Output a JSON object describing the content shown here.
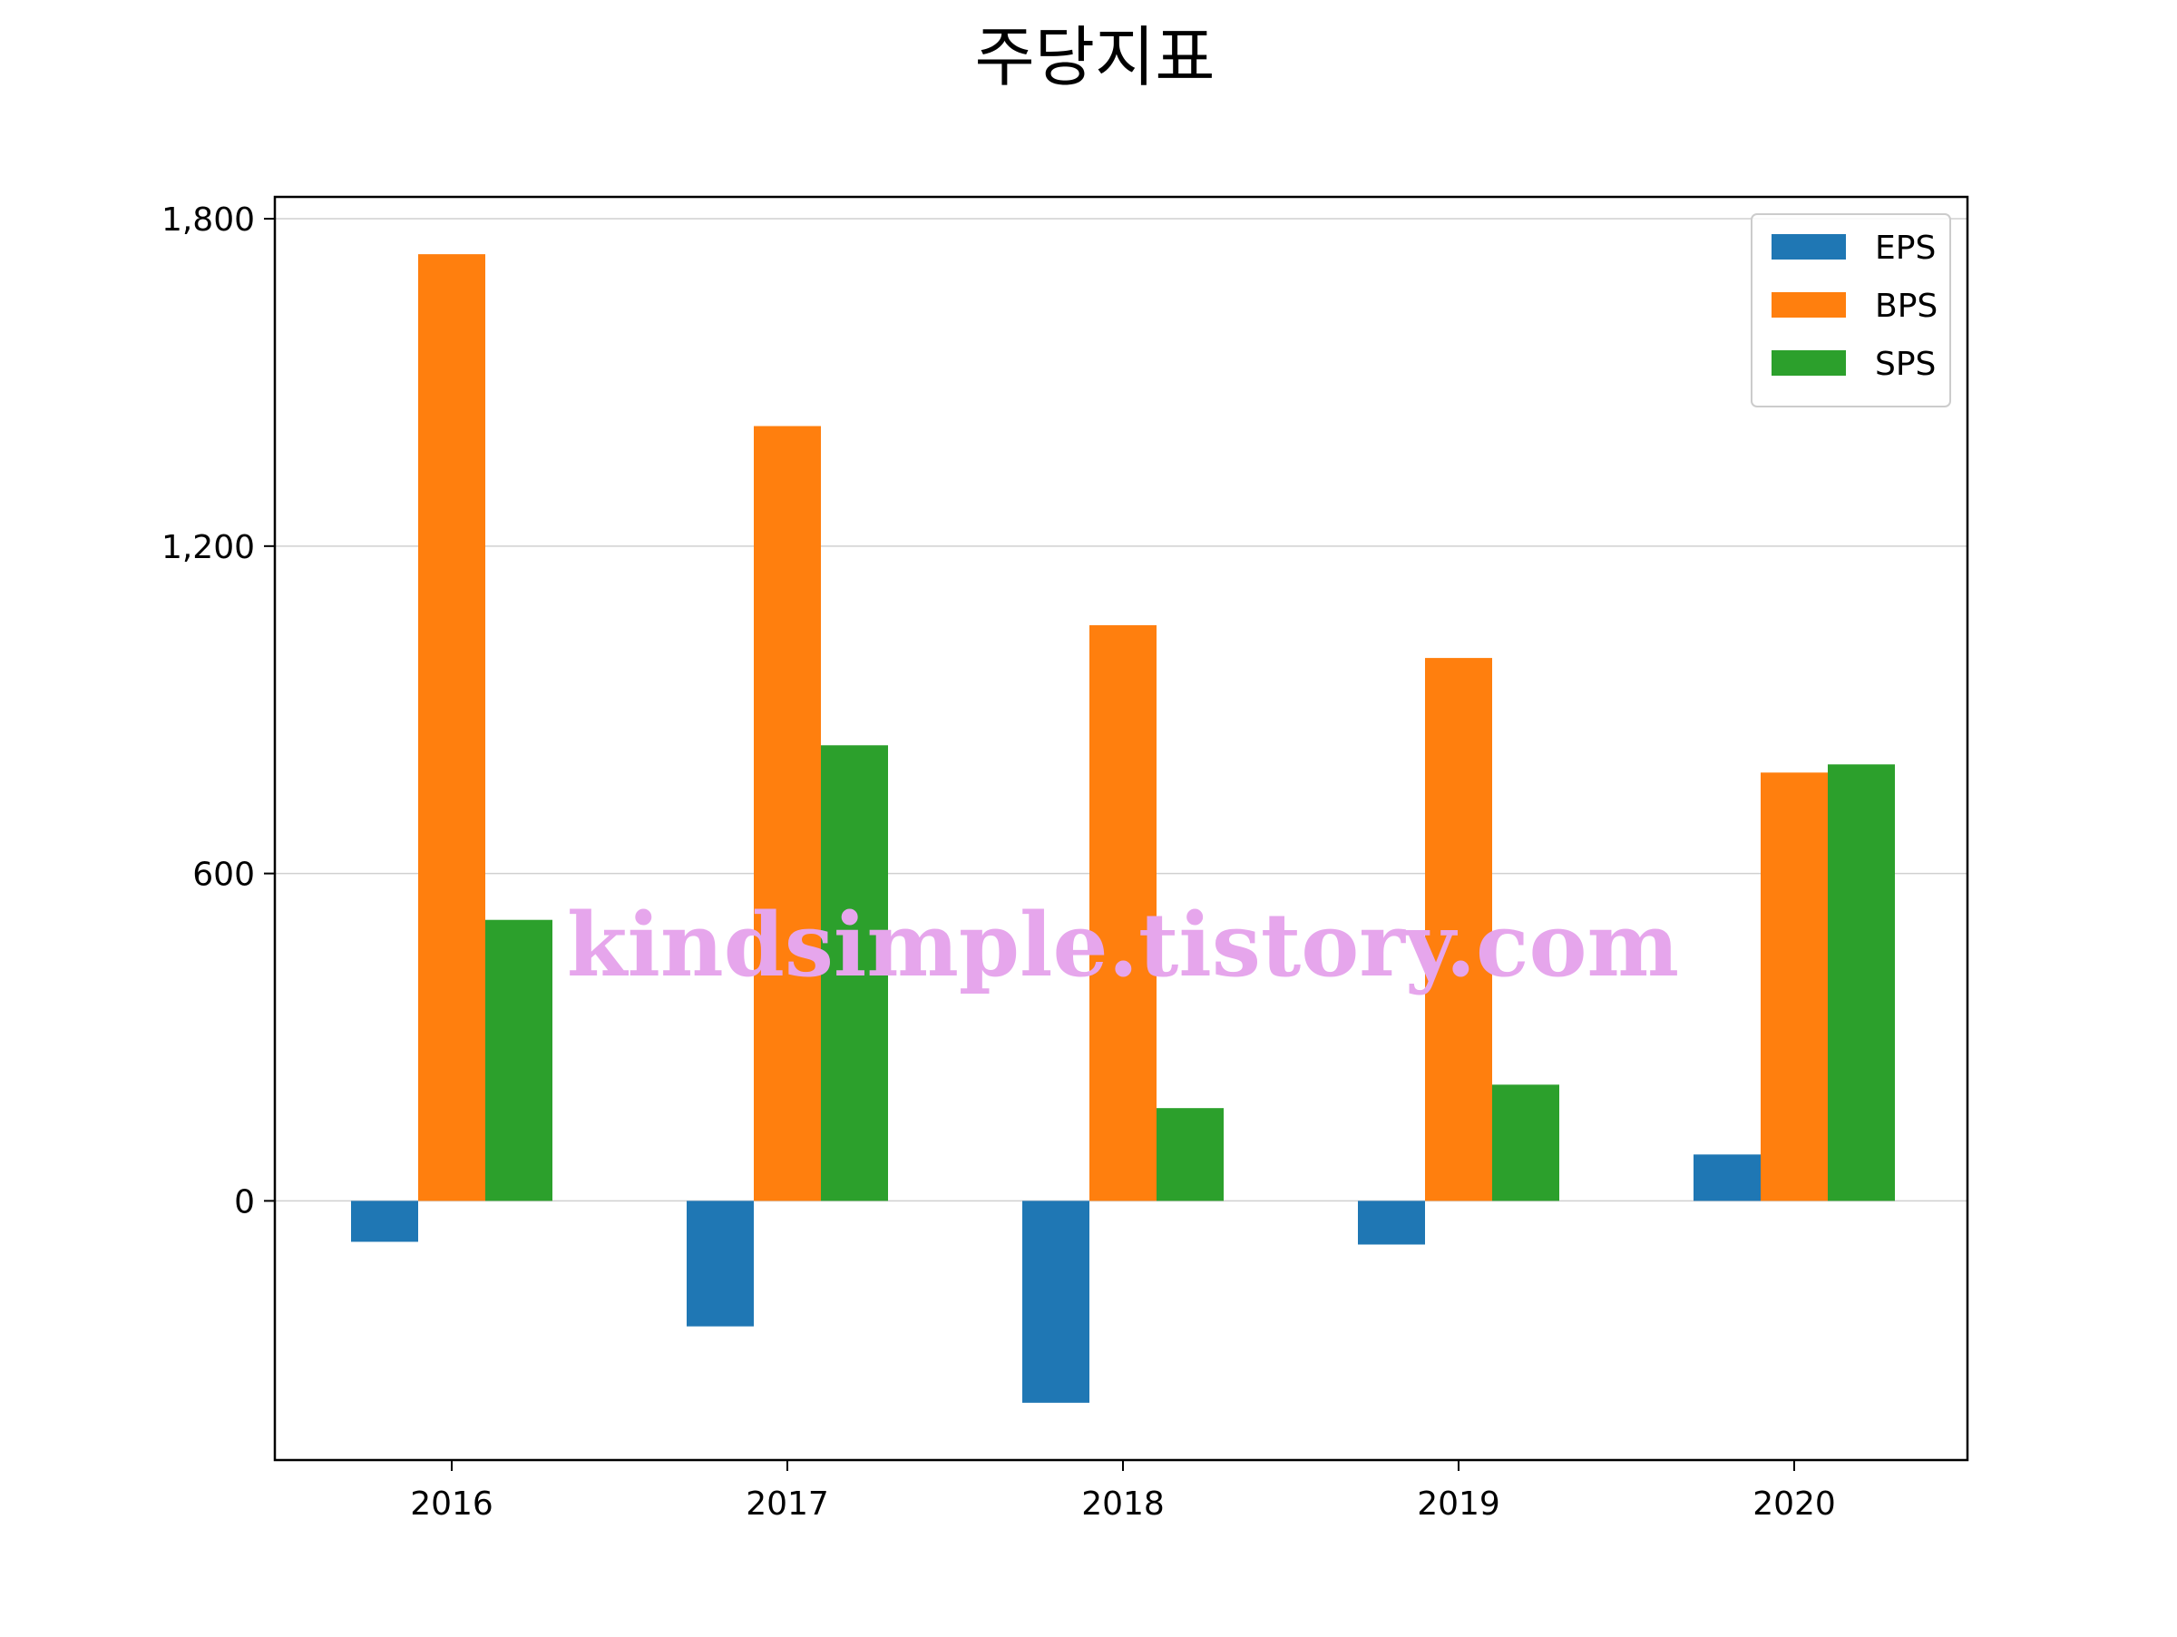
{
  "chart_data": {
    "type": "bar",
    "title": "주당지표",
    "categories": [
      "2016",
      "2017",
      "2018",
      "2019",
      "2020"
    ],
    "series": [
      {
        "name": "EPS",
        "color": "#1f77b4",
        "values": [
          -75,
          -230,
          -370,
          -80,
          85
        ]
      },
      {
        "name": "BPS",
        "color": "#ff7f0e",
        "values": [
          1735,
          1420,
          1055,
          995,
          785
        ]
      },
      {
        "name": "SPS",
        "color": "#2ca02c",
        "values": [
          515,
          835,
          170,
          213,
          800
        ]
      }
    ],
    "ylim": [
      -475,
      1840
    ],
    "yticks": [
      0,
      600,
      1200,
      1800
    ],
    "ytick_labels": [
      "0",
      "600",
      "1,200",
      "1,800"
    ],
    "grid": {
      "y": true,
      "x": false
    },
    "legend": {
      "placement": "top-right"
    },
    "xlabel": "",
    "ylabel": "",
    "watermark": "kindsimple.tistory.com"
  }
}
